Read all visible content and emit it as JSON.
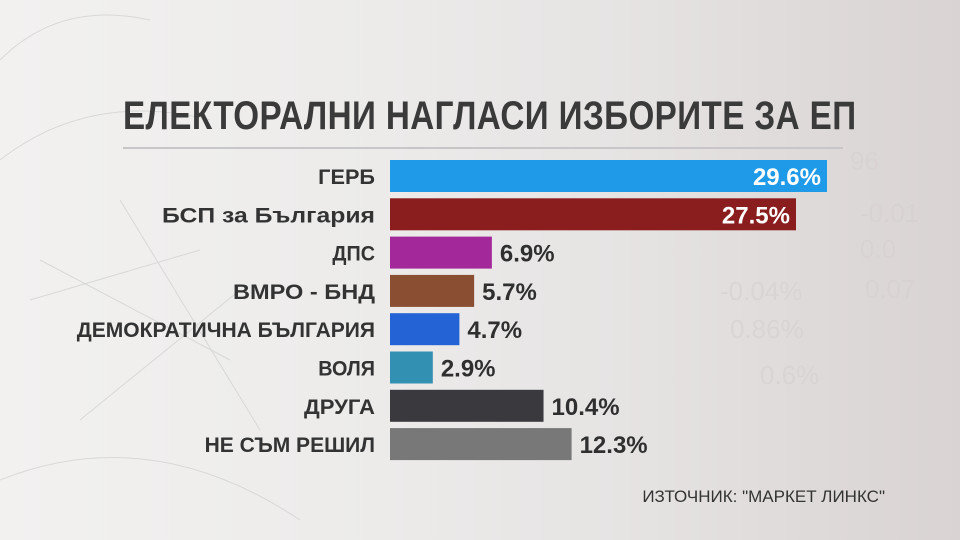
{
  "title": "ЕЛЕКТОРАЛНИ НАГЛАСИ ИЗБОРИТЕ ЗА ЕП",
  "source": "ИЗТОЧНИК: \"МАРКЕТ ЛИНКС\"",
  "chart_data": {
    "type": "bar",
    "orientation": "horizontal",
    "title": "ЕЛЕКТОРАЛНИ НАГЛАСИ ИЗБОРИТЕ ЗА ЕП",
    "categories": [
      "ГЕРБ",
      "БСП за България",
      "ДПС",
      "ВМРО - БНД",
      "ДЕМОКРАТИЧНА БЪЛГАРИЯ",
      "ВОЛЯ",
      "ДРУГА",
      "НЕ СЪМ РЕШИЛ"
    ],
    "values": [
      29.6,
      27.5,
      6.9,
      5.7,
      4.7,
      2.9,
      10.4,
      12.3
    ],
    "labels": [
      "29.6%",
      "27.5%",
      "6.9%",
      "5.7%",
      "4.7%",
      "2.9%",
      "10.4%",
      "12.3%"
    ],
    "label_inside": [
      true,
      true,
      false,
      false,
      false,
      false,
      false,
      false
    ],
    "colors": [
      "#1e9ae8",
      "#8a1d1d",
      "#a3289a",
      "#8a4f33",
      "#2463d6",
      "#3290b2",
      "#3a3a3e",
      "#787878"
    ],
    "xlim": [
      0,
      29.6
    ],
    "grid": false,
    "legend": "none"
  }
}
